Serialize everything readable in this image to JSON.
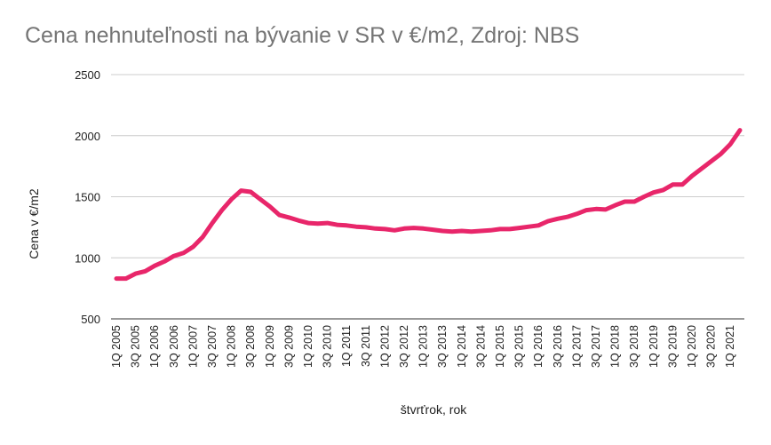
{
  "chart_data": {
    "type": "line",
    "title": "Cena nehnuteľnosti na bývanie v SR v €/m2, Zdroj: NBS",
    "xlabel": "štvrťrok, rok",
    "ylabel": "Cena v €/m2",
    "ylim": [
      500,
      2500
    ],
    "yticks": [
      500,
      1000,
      1500,
      2000,
      2500
    ],
    "grid": true,
    "legend": "none",
    "line_color": "#e8266a",
    "x_tick_labels": [
      "1Q 2005",
      "3Q 2005",
      "1Q 2006",
      "3Q 2006",
      "1Q 2007",
      "3Q 2007",
      "1Q 2008",
      "3Q 2008",
      "1Q 2009",
      "3Q 2009",
      "1Q 2010",
      "3Q 2010",
      "1Q 2011",
      "3Q 2011",
      "1Q 2012",
      "3Q 2012",
      "1Q 2013",
      "3Q 2013",
      "1Q 2014",
      "3Q 2014",
      "1Q 2015",
      "3Q 2015",
      "1Q 2016",
      "3Q 2016",
      "1Q 2017",
      "3Q 2017",
      "1Q 2018",
      "3Q 2018",
      "1Q 2019",
      "3Q 2019",
      "1Q 2020",
      "3Q 2020",
      "1Q 2021"
    ],
    "x": [
      "1Q 2005",
      "2Q 2005",
      "3Q 2005",
      "4Q 2005",
      "1Q 2006",
      "2Q 2006",
      "3Q 2006",
      "4Q 2006",
      "1Q 2007",
      "2Q 2007",
      "3Q 2007",
      "4Q 2007",
      "1Q 2008",
      "2Q 2008",
      "3Q 2008",
      "4Q 2008",
      "1Q 2009",
      "2Q 2009",
      "3Q 2009",
      "4Q 2009",
      "1Q 2010",
      "2Q 2010",
      "3Q 2010",
      "4Q 2010",
      "1Q 2011",
      "2Q 2011",
      "3Q 2011",
      "4Q 2011",
      "1Q 2012",
      "2Q 2012",
      "3Q 2012",
      "4Q 2012",
      "1Q 2013",
      "2Q 2013",
      "3Q 2013",
      "4Q 2013",
      "1Q 2014",
      "2Q 2014",
      "3Q 2014",
      "4Q 2014",
      "1Q 2015",
      "2Q 2015",
      "3Q 2015",
      "4Q 2015",
      "1Q 2016",
      "2Q 2016",
      "3Q 2016",
      "4Q 2016",
      "1Q 2017",
      "2Q 2017",
      "3Q 2017",
      "4Q 2017",
      "1Q 2018",
      "2Q 2018",
      "3Q 2018",
      "4Q 2018",
      "1Q 2019",
      "2Q 2019",
      "3Q 2019",
      "4Q 2019",
      "1Q 2020",
      "2Q 2020",
      "3Q 2020",
      "4Q 2020",
      "1Q 2021",
      "2Q 2021"
    ],
    "series": [
      {
        "values": [
          830,
          830,
          870,
          890,
          935,
          970,
          1015,
          1040,
          1090,
          1170,
          1285,
          1390,
          1480,
          1550,
          1540,
          1480,
          1420,
          1350,
          1330,
          1305,
          1285,
          1280,
          1285,
          1270,
          1265,
          1255,
          1250,
          1240,
          1235,
          1225,
          1240,
          1245,
          1240,
          1230,
          1220,
          1215,
          1220,
          1215,
          1220,
          1225,
          1235,
          1235,
          1245,
          1255,
          1265,
          1300,
          1320,
          1335,
          1360,
          1390,
          1400,
          1395,
          1430,
          1460,
          1460,
          1500,
          1535,
          1555,
          1600,
          1600,
          1670,
          1730,
          1790,
          1850,
          1930,
          2045
        ]
      }
    ]
  }
}
